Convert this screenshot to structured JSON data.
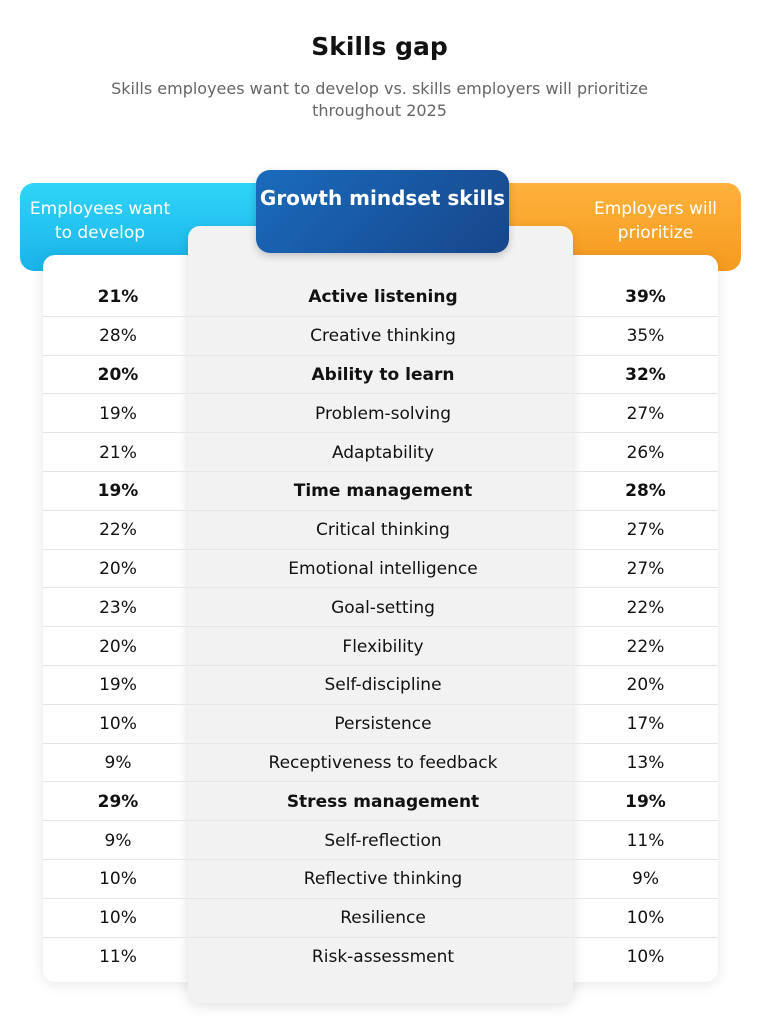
{
  "title": "Skills gap",
  "subtitle": "Skills employees want to develop vs. skills employers will prioritize throughout 2025",
  "colors": {
    "employees": "#1fc1f0",
    "skills": "#1a5aa8",
    "employers": "#f8a42a"
  },
  "chart_data": {
    "type": "table",
    "title": "Skills gap",
    "columns": [
      "Employees want to develop",
      "Growth mindset skills",
      "Employers will prioritize"
    ],
    "rows": [
      {
        "employees": "21%",
        "skill": "Active listening",
        "employers": "39%",
        "bold": true
      },
      {
        "employees": "28%",
        "skill": "Creative thinking",
        "employers": "35%",
        "bold": false
      },
      {
        "employees": "20%",
        "skill": "Ability to learn",
        "employers": "32%",
        "bold": true
      },
      {
        "employees": "19%",
        "skill": "Problem-solving",
        "employers": "27%",
        "bold": false
      },
      {
        "employees": "21%",
        "skill": "Adaptability",
        "employers": "26%",
        "bold": false
      },
      {
        "employees": "19%",
        "skill": "Time management",
        "employers": "28%",
        "bold": true
      },
      {
        "employees": "22%",
        "skill": "Critical thinking",
        "employers": "27%",
        "bold": false
      },
      {
        "employees": "20%",
        "skill": "Emotional intelligence",
        "employers": "27%",
        "bold": false
      },
      {
        "employees": "23%",
        "skill": "Goal-setting",
        "employers": "22%",
        "bold": false
      },
      {
        "employees": "20%",
        "skill": "Flexibility",
        "employers": "22%",
        "bold": false
      },
      {
        "employees": "19%",
        "skill": "Self-discipline",
        "employers": "20%",
        "bold": false
      },
      {
        "employees": "10%",
        "skill": "Persistence",
        "employers": "17%",
        "bold": false
      },
      {
        "employees": "9%",
        "skill": "Receptiveness to feedback",
        "employers": "13%",
        "bold": false
      },
      {
        "employees": "29%",
        "skill": "Stress management",
        "employers": "19%",
        "bold": true
      },
      {
        "employees": "9%",
        "skill": "Self-reflection",
        "employers": "11%",
        "bold": false
      },
      {
        "employees": "10%",
        "skill": "Reflective thinking",
        "employers": "9%",
        "bold": false
      },
      {
        "employees": "10%",
        "skill": "Resilience",
        "employers": "10%",
        "bold": false
      },
      {
        "employees": "11%",
        "skill": "Risk-assessment",
        "employers": "10%",
        "bold": false
      }
    ]
  }
}
